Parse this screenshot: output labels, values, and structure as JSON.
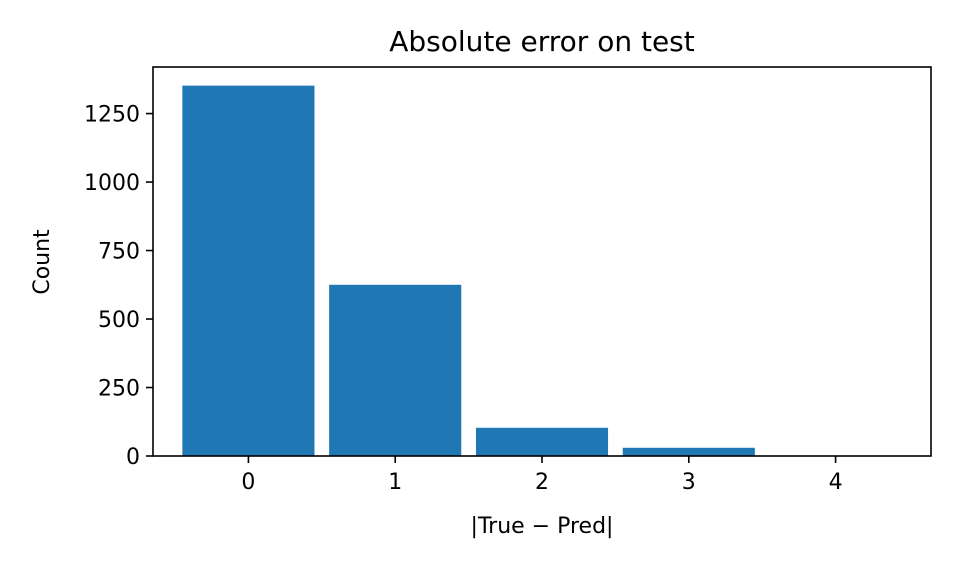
{
  "chart_data": {
    "type": "bar",
    "title": "Absolute error on test",
    "xlabel": "|True − Pred|",
    "ylabel": "Count",
    "categories": [
      "0",
      "1",
      "2",
      "3",
      "4"
    ],
    "values": [
      1352,
      625,
      103,
      30,
      1
    ],
    "ylim": [
      0,
      1420
    ],
    "yticks": [
      0,
      250,
      500,
      750,
      1000,
      1250
    ],
    "ytick_labels": [
      "0",
      "250",
      "500",
      "750",
      "1000",
      "1250"
    ],
    "xlim": [
      -0.65,
      4.65
    ],
    "bar_color": "#1f77b4",
    "grid": false,
    "legend": "none"
  }
}
